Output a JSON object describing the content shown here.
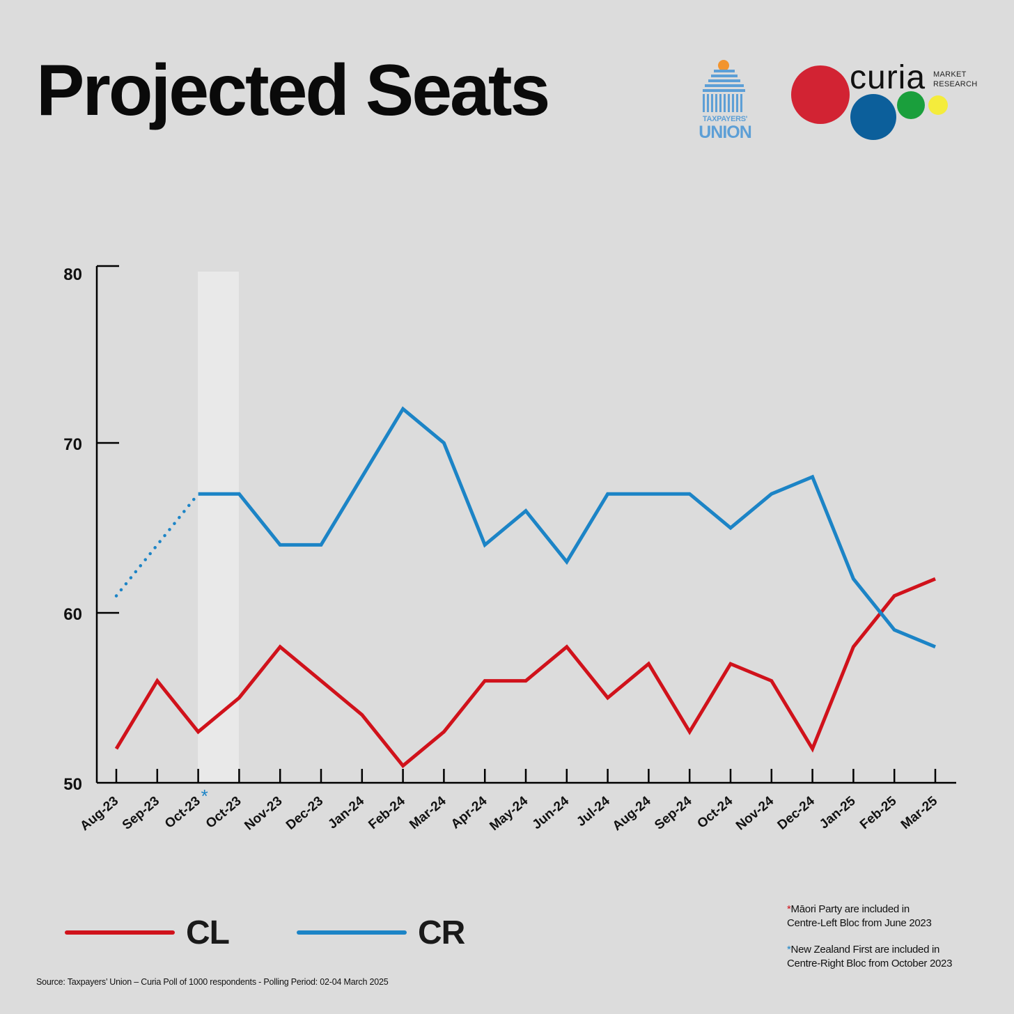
{
  "header": {
    "title": "Projected Seats"
  },
  "logos": {
    "taxpayers_union": {
      "line1": "TAXPAYERS'",
      "line2": "UNION",
      "icon": "parliament-beehive-icon"
    },
    "curia": {
      "word": "curia",
      "sub1": "MARKET",
      "sub2": "RESEARCH"
    }
  },
  "colors": {
    "background": "#dcdcdc",
    "cl": "#d0121b",
    "cr": "#1c84c6",
    "highlight_band": "#e9e9e9",
    "curia_red": "#d22333",
    "curia_blue": "#0c5f9b",
    "curia_green": "#1a9f3c",
    "curia_yellow": "#f4ec3c",
    "tu_blue": "#5d9fd6",
    "tu_orange": "#f2942e"
  },
  "chart_data": {
    "type": "line",
    "title": "Projected Seats",
    "categories": [
      "Aug-23",
      "Sep-23",
      "Oct-23",
      "Oct-23",
      "Nov-23",
      "Dec-23",
      "Jan-24",
      "Feb-24",
      "Mar-24",
      "Apr-24",
      "May-24",
      "Jun-24",
      "Jul-24",
      "Aug-24",
      "Sep-24",
      "Oct-24",
      "Nov-24",
      "Dec-24",
      "Jan-25",
      "Feb-25",
      "Mar-25"
    ],
    "category_marker": {
      "index": 2,
      "symbol": "*"
    },
    "ylim": [
      50,
      80
    ],
    "yticks": [
      50,
      60,
      70,
      80
    ],
    "highlight_band_index": 2,
    "series": [
      {
        "name": "CL",
        "values": [
          52,
          56,
          53,
          55,
          58,
          56,
          54,
          51,
          53,
          56,
          56,
          58,
          55,
          57,
          53,
          57,
          56,
          52,
          58,
          61,
          62
        ]
      },
      {
        "name": "CR",
        "values": [
          61,
          64,
          67,
          67,
          64,
          64,
          68,
          72,
          70,
          64,
          66,
          63,
          67,
          67,
          67,
          65,
          67,
          68,
          62,
          59,
          58
        ],
        "dotted_until_index": 2
      }
    ]
  },
  "legend": {
    "cl_label": "CL",
    "cr_label": "CR"
  },
  "notes": {
    "maori_line1": "Māori Party are included in",
    "maori_line2": "Centre-Left Bloc from June 2023",
    "nzfirst_line1": "New Zealand First are included in",
    "nzfirst_line2": "Centre-Right Bloc from October 2023",
    "asterisk": "*"
  },
  "source": {
    "text": "Source: Taxpayers’ Union – Curia Poll of 1000 respondents -  Polling Period: 02-04 March 2025"
  }
}
